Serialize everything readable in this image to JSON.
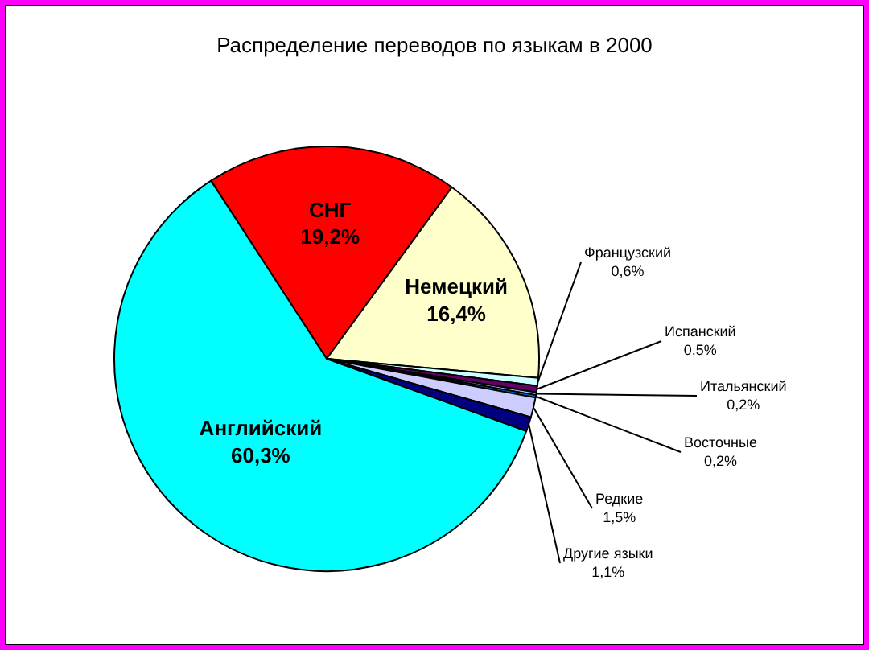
{
  "chart_data": {
    "type": "pie",
    "title": "Распределение переводов по языкам в 2000",
    "categories": [
      "СНГ",
      "Немецкий",
      "Французский",
      "Испанский",
      "Итальянский",
      "Восточные",
      "Редкие",
      "Другие языки",
      "Английский"
    ],
    "values": [
      19.2,
      16.4,
      0.6,
      0.5,
      0.2,
      0.2,
      1.5,
      1.1,
      60.3
    ],
    "value_labels": [
      "19,2%",
      "16,4%",
      "0,6%",
      "0,5%",
      "0,2%",
      "0,2%",
      "1,5%",
      "1,1%",
      "60,3%"
    ],
    "colors": [
      "#ff0000",
      "#ffffcc",
      "#ccffff",
      "#660066",
      "#99ccff",
      "#0066cc",
      "#ccccff",
      "#000080",
      "#00ffff"
    ],
    "legend": false
  }
}
